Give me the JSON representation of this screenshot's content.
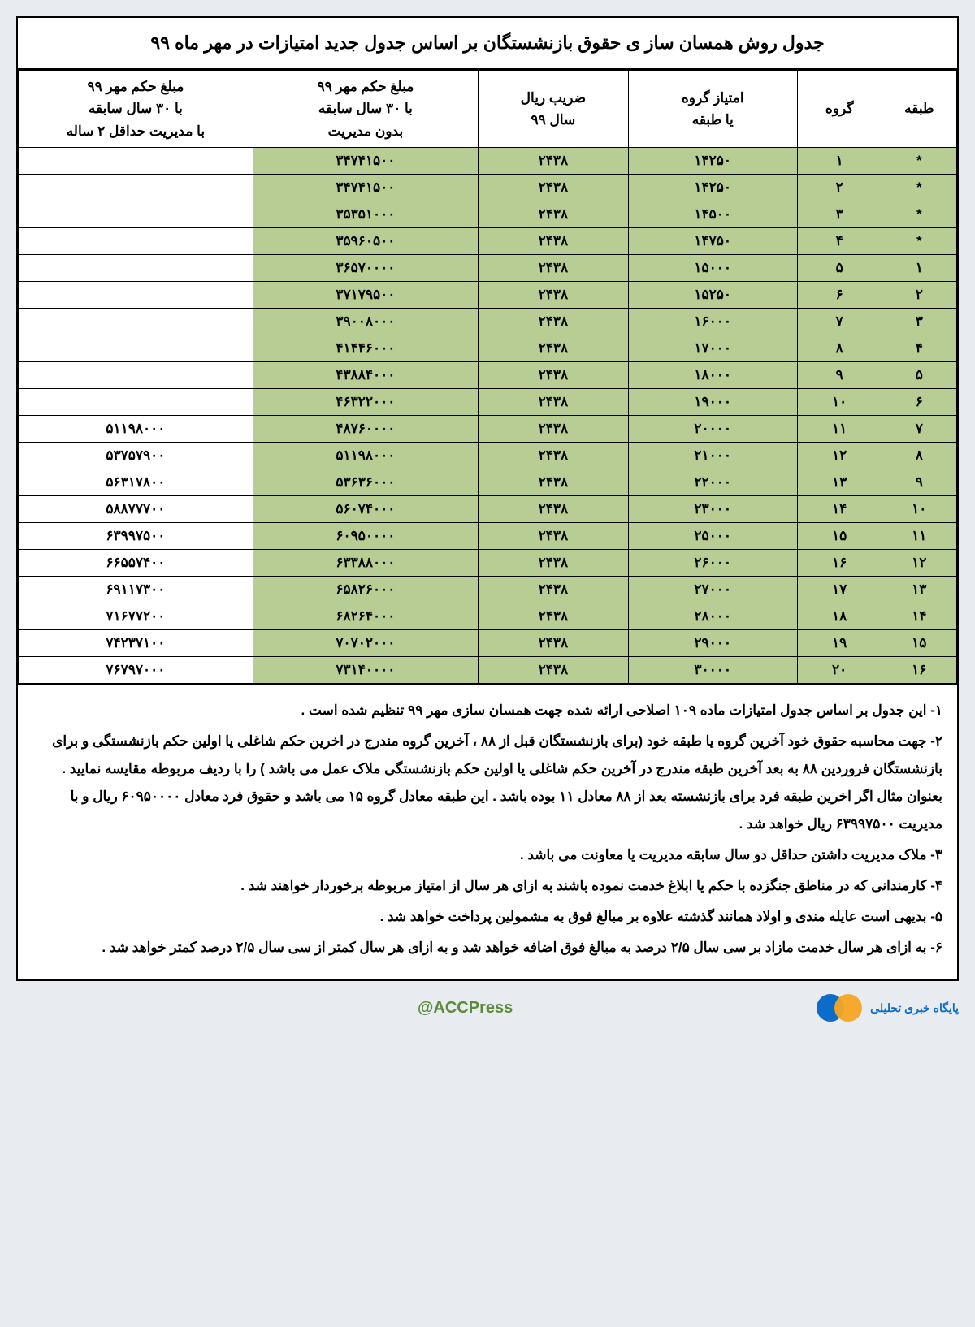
{
  "title": "جدول روش همسان ساز ی حقوق بازنشستگان بر اساس جدول جدید امتیازات در مهر ماه ۹۹",
  "columns": [
    "طبقه",
    "گروه",
    "امتیاز گروه\nیا طبقه",
    "ضریب ریال\nسال ۹۹",
    "مبلغ حکم مهر ۹۹\nبا ۳۰ سال سابقه\nبدون مدیریت",
    "مبلغ حکم مهر ۹۹\nبا ۳۰ سال سابقه\nبا مدیریت حداقل ۲ ساله"
  ],
  "rows": [
    [
      "*",
      "۱",
      "۱۴۲۵۰",
      "۲۴۳۸",
      "۳۴۷۴۱۵۰۰",
      ""
    ],
    [
      "*",
      "۲",
      "۱۴۲۵۰",
      "۲۴۳۸",
      "۳۴۷۴۱۵۰۰",
      ""
    ],
    [
      "*",
      "۳",
      "۱۴۵۰۰",
      "۲۴۳۸",
      "۳۵۳۵۱۰۰۰",
      ""
    ],
    [
      "*",
      "۴",
      "۱۴۷۵۰",
      "۲۴۳۸",
      "۳۵۹۶۰۵۰۰",
      ""
    ],
    [
      "۱",
      "۵",
      "۱۵۰۰۰",
      "۲۴۳۸",
      "۳۶۵۷۰۰۰۰",
      ""
    ],
    [
      "۲",
      "۶",
      "۱۵۲۵۰",
      "۲۴۳۸",
      "۳۷۱۷۹۵۰۰",
      ""
    ],
    [
      "۳",
      "۷",
      "۱۶۰۰۰",
      "۲۴۳۸",
      "۳۹۰۰۸۰۰۰",
      ""
    ],
    [
      "۴",
      "۸",
      "۱۷۰۰۰",
      "۲۴۳۸",
      "۴۱۴۴۶۰۰۰",
      ""
    ],
    [
      "۵",
      "۹",
      "۱۸۰۰۰",
      "۲۴۳۸",
      "۴۳۸۸۴۰۰۰",
      ""
    ],
    [
      "۶",
      "۱۰",
      "۱۹۰۰۰",
      "۲۴۳۸",
      "۴۶۳۲۲۰۰۰",
      ""
    ],
    [
      "۷",
      "۱۱",
      "۲۰۰۰۰",
      "۲۴۳۸",
      "۴۸۷۶۰۰۰۰",
      "۵۱۱۹۸۰۰۰"
    ],
    [
      "۸",
      "۱۲",
      "۲۱۰۰۰",
      "۲۴۳۸",
      "۵۱۱۹۸۰۰۰",
      "۵۳۷۵۷۹۰۰"
    ],
    [
      "۹",
      "۱۳",
      "۲۲۰۰۰",
      "۲۴۳۸",
      "۵۳۶۳۶۰۰۰",
      "۵۶۳۱۷۸۰۰"
    ],
    [
      "۱۰",
      "۱۴",
      "۲۳۰۰۰",
      "۲۴۳۸",
      "۵۶۰۷۴۰۰۰",
      "۵۸۸۷۷۷۰۰"
    ],
    [
      "۱۱",
      "۱۵",
      "۲۵۰۰۰",
      "۲۴۳۸",
      "۶۰۹۵۰۰۰۰",
      "۶۳۹۹۷۵۰۰"
    ],
    [
      "۱۲",
      "۱۶",
      "۲۶۰۰۰",
      "۲۴۳۸",
      "۶۳۳۸۸۰۰۰",
      "۶۶۵۵۷۴۰۰"
    ],
    [
      "۱۳",
      "۱۷",
      "۲۷۰۰۰",
      "۲۴۳۸",
      "۶۵۸۲۶۰۰۰",
      "۶۹۱۱۷۳۰۰"
    ],
    [
      "۱۴",
      "۱۸",
      "۲۸۰۰۰",
      "۲۴۳۸",
      "۶۸۲۶۴۰۰۰",
      "۷۱۶۷۷۲۰۰"
    ],
    [
      "۱۵",
      "۱۹",
      "۲۹۰۰۰",
      "۲۴۳۸",
      "۷۰۷۰۲۰۰۰",
      "۷۴۲۳۷۱۰۰"
    ],
    [
      "۱۶",
      "۲۰",
      "۳۰۰۰۰",
      "۲۴۳۸",
      "۷۳۱۴۰۰۰۰",
      "۷۶۷۹۷۰۰۰"
    ]
  ],
  "notes": [
    "۱- این جدول بر اساس جدول امتیازات ماده ۱۰۹ اصلاحی ارائه شده جهت همسان سازی مهر ۹۹ تنظیم شده است .",
    "۲- جهت محاسبه حقوق خود آخرین گروه یا طبقه خود (برای بازنشستگان قبل از ۸۸ ، آخرین گروه مندرج در اخرین حکم شاغلی یا اولین حکم بازنشستگی و برای بازنشستگان فروردین ۸۸ به بعد آخرین طبقه مندرج در آخرین حکم شاغلی یا اولین حکم بازنشستگی ملاک عمل می باشد ) را با ردیف مربوطه مقایسه نمایید . بعنوان مثال اگر اخرین طبقه فرد برای بازنشسته بعد از ۸۸ معادل ۱۱ بوده باشد . این طبقه معادل گروه ۱۵ می باشد و حقوق فرد معادل ۶۰۹۵۰۰۰۰ ریال و با مدیریت ۶۳۹۹۷۵۰۰ ریال خواهد شد .",
    "۳- ملاک مدیریت داشتن حداقل دو سال سابقه مدیریت یا معاونت می باشد .",
    "۴- کارمندانی که در مناطق جنگزده با حکم یا ابلاغ خدمت نموده باشند به ازای هر سال از امتیاز مربوطه برخوردار خواهند شد .",
    "۵- بدیهی است عایله مندی و اولاد همانند گذشته علاوه بر مبالغ فوق به مشمولین پرداخت خواهد شد .",
    "۶- به ازای هر سال خدمت مازاد بر سی سال ۲/۵ درصد به مبالغ فوق اضافه خواهد شد و به ازای هر سال کمتر از سی سال ۲/۵ درصد کمتر خواهد شد ."
  ],
  "handle": "@ACCPress",
  "brand": "پایگاه خبری تحلیلی",
  "style": {
    "header_bg": "#ffffff",
    "cell_bg": "#b8cd94",
    "last_cell_bg": "#ffffff",
    "border": "#000000",
    "handle_color": "#5b8a3a",
    "col_widths_pct": [
      8,
      9,
      18,
      16,
      24,
      25
    ]
  }
}
